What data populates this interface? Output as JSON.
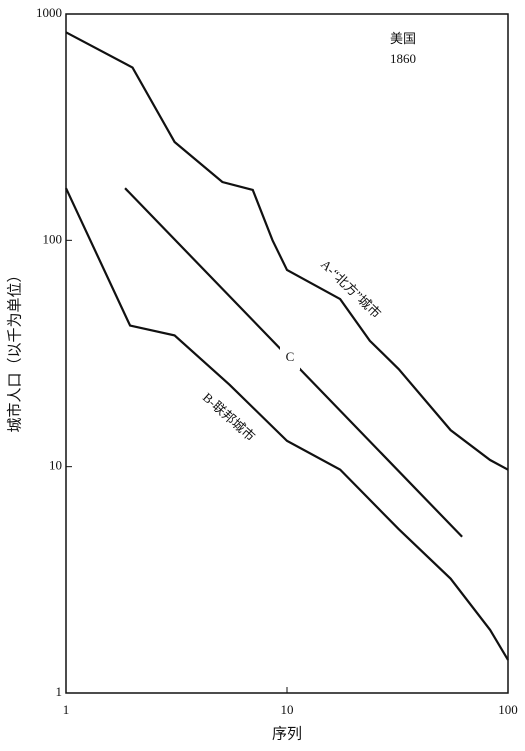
{
  "chart_data": {
    "type": "line",
    "xlabel": "序列",
    "ylabel": "城市人口（以千为单位）",
    "log_x": true,
    "log_y": true,
    "xlim": [
      1,
      100
    ],
    "ylim": [
      1,
      1000
    ],
    "xticks": [
      1,
      10,
      100
    ],
    "yticks": [
      1,
      10,
      100,
      1000
    ],
    "series": [
      {
        "color": "#111111",
        "x": [
          1,
          2,
          3.1,
          5.1,
          7,
          8.6,
          10,
          17.4,
          23.7,
          32,
          55,
          83,
          100
        ],
        "values": [
          830,
          580,
          272,
          181,
          167,
          100,
          74,
          55,
          36,
          27,
          14.5,
          10.7,
          9.7
        ]
      },
      {
        "color": "#111111",
        "x": [
          1,
          1.95,
          3.1,
          5.5,
          10,
          17.4,
          32,
          55,
          83,
          100
        ],
        "values": [
          170,
          42,
          38,
          23,
          13,
          9.7,
          5.3,
          3.2,
          1.9,
          1.4
        ]
      },
      {
        "color": "#111111",
        "x": [
          1.85,
          62
        ],
        "values": [
          170,
          4.9
        ]
      }
    ],
    "annotations": [
      "美国",
      "1860",
      "A-“北方”城市",
      "B-联邦城市",
      "C"
    ]
  }
}
